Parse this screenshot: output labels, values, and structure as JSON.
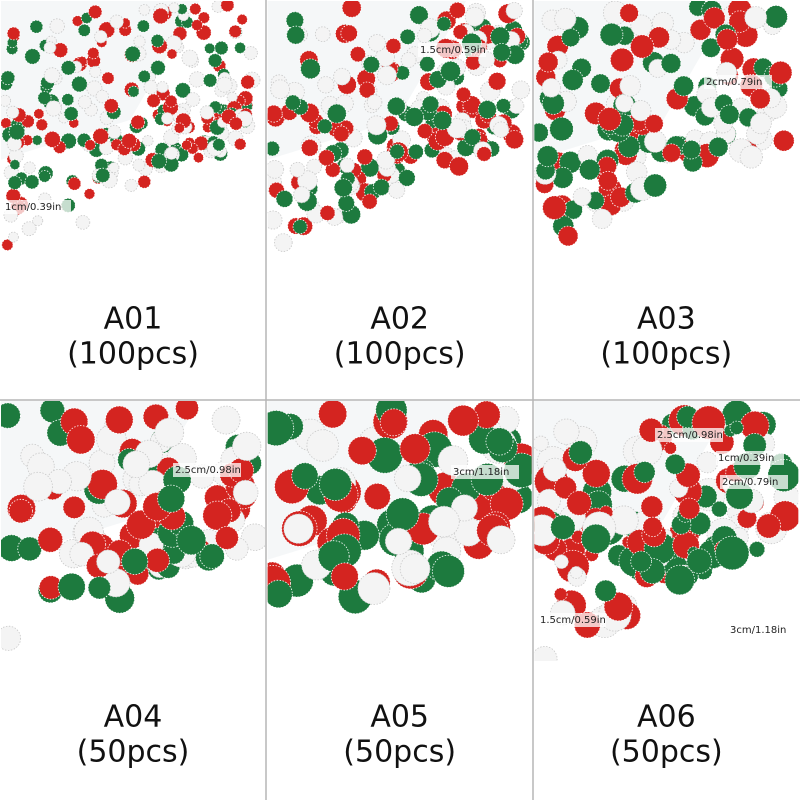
{
  "cells": [
    {
      "code": "A01",
      "count": "(100pcs)",
      "sizes": [
        "1cm/0.39in"
      ]
    },
    {
      "code": "A02",
      "count": "(100pcs)",
      "sizes": [
        "1.5cm/0.59in"
      ]
    },
    {
      "code": "A03",
      "count": "(100pcs)",
      "sizes": [
        "2cm/0.79in"
      ]
    },
    {
      "code": "A04",
      "count": "(50pcs)",
      "sizes": [
        "2.5cm/0.98in"
      ]
    },
    {
      "code": "A05",
      "count": "(50pcs)",
      "sizes": [
        "3cm/1.18in"
      ]
    },
    {
      "code": "A06",
      "count": "(50pcs)",
      "sizes": [
        "2.5cm/0.98in",
        "1cm/0.39in",
        "2cm/0.79in",
        "1.5cm/0.59in",
        "3cm/1.18in"
      ]
    }
  ]
}
